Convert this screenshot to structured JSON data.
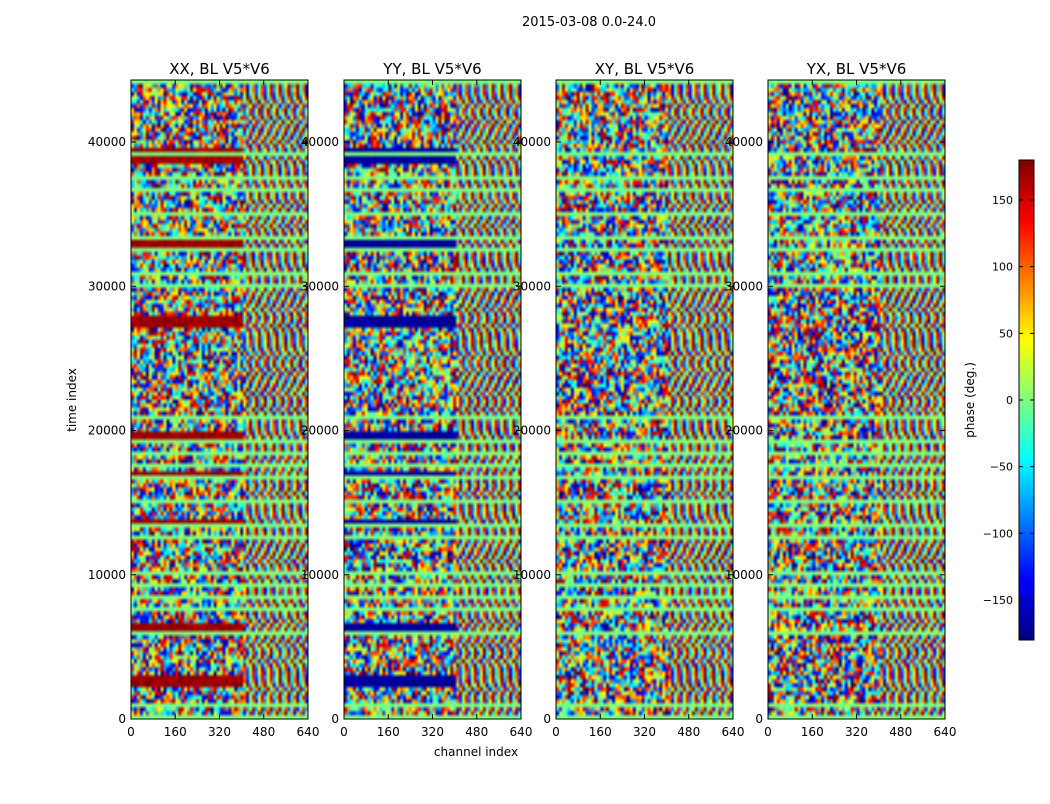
{
  "figure_title": "2015-03-08 0.0-24.0",
  "chart_data": {
    "type": "heatmap",
    "title": "2015-03-08 0.0-24.0",
    "xlabel": "channel index",
    "ylabel": "time index",
    "xlim": [
      0,
      640
    ],
    "ylim": [
      0,
      44300
    ],
    "x_ticks": [
      0,
      160,
      320,
      480,
      640
    ],
    "y_ticks": [
      0,
      10000,
      20000,
      30000,
      40000
    ],
    "colorbar": {
      "label": "phase (deg.)",
      "range": [
        -180,
        180
      ],
      "ticks": [
        150,
        100,
        50,
        0,
        -50,
        -100,
        -150
      ],
      "tick_labels": [
        "150",
        "100",
        "50",
        "0",
        "−50",
        "−100",
        "−150"
      ],
      "colormap": [
        "#00007f",
        "#0000ff",
        "#007fff",
        "#00ffff",
        "#7fff7f",
        "#ffff00",
        "#ff7f00",
        "#ff0000",
        "#7f0000"
      ]
    },
    "panels": [
      {
        "title": "XX, BL V5*V6",
        "y_tick_labels": true,
        "xlabel": false
      },
      {
        "title": "YY, BL V5*V6",
        "y_tick_labels": true,
        "xlabel": true
      },
      {
        "title": "XY, BL V5*V6",
        "y_tick_labels": true,
        "xlabel": false
      },
      {
        "title": "YX, BL V5*V6",
        "y_tick_labels": true,
        "xlabel": false
      }
    ],
    "flag_bands_deg": {
      "XX": 170,
      "YY": -170
    }
  }
}
